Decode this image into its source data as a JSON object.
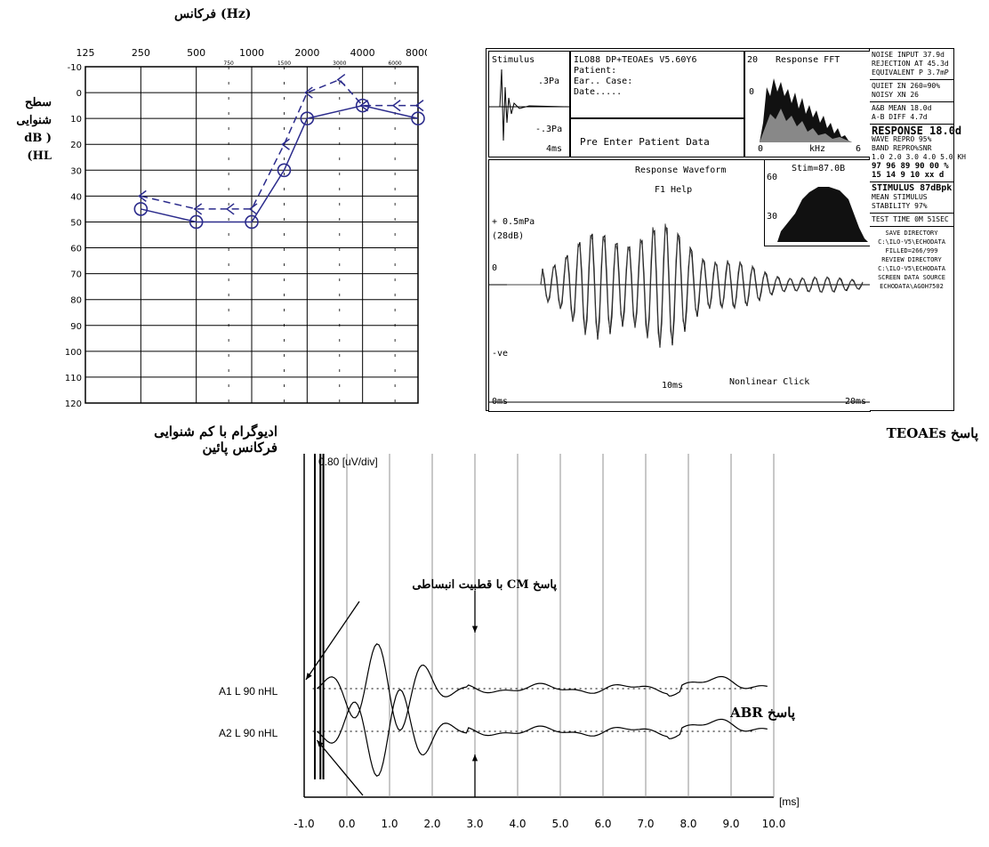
{
  "audiogram": {
    "title": "فرکانس (Hz)",
    "ylabel_lines": [
      "سطح",
      "شنوایی",
      "dB )",
      "(HL"
    ],
    "freq_labels": [
      "125",
      "250",
      "500",
      "1000",
      "2000",
      "4000",
      "8000"
    ],
    "half_freq_labels": [
      "750",
      "1500",
      "3000",
      "6000"
    ],
    "db_labels": [
      "-10",
      "0",
      "10",
      "20",
      "30",
      "40",
      "50",
      "60",
      "70",
      "80",
      "90",
      "100",
      "110",
      "120"
    ],
    "caption_lines": [
      "ادیوگرام با کم شنوایی",
      "فرکانس پائین"
    ]
  },
  "teoae": {
    "caption": "پاسخ TEOAEs",
    "stimulus": {
      "title": "Stimulus",
      "plus": ".3Pa",
      "minus": "-.3Pa",
      "time": "4ms"
    },
    "header": {
      "line1": "ILO88 DP+TEOAEs   V5.60Y6",
      "line2": "Patient:",
      "line3": "Ear..      Case:",
      "line4": "Date....."
    },
    "pre_enter": "Pre Enter Patient Data",
    "fft": {
      "title": "Response FFT",
      "scale_top": "20",
      "scale_bottom": "0",
      "xlabel": "kHz",
      "xend": "6",
      "xstart": "0"
    },
    "stim": {
      "label": "Stim=87.0B",
      "left_top": "60",
      "left_bottom": "30"
    },
    "wave": {
      "title": "Response Waveform",
      "help": "F1 Help",
      "amp": "+ 0.5mPa",
      "amp2": "(28dB)",
      "zero": "0",
      "neg": "-ve",
      "t0": "0ms",
      "tmid": "10ms",
      "tend": "20ms",
      "mode": "Nonlinear Click"
    },
    "side": {
      "noise": [
        "NOISE INPUT 37.9d",
        "REJECTION AT 45.3d",
        "EQUIVALENT P 3.7mP"
      ],
      "quiet": [
        "QUIET ΣN 260=90%",
        "NOISY XN   26"
      ],
      "ab": [
        "A&B MEAN  18.0d",
        "A-B DIFF   4.7d"
      ],
      "response": [
        "RESPONSE 18.0d",
        "WAVE REPRO 95%",
        "BAND REPRO%SNR",
        "1.0 2.0 3.0 4.0 5.0 KH",
        "97 96 89 90 00 %",
        "15 14  9 10 xx d"
      ],
      "stimulus": [
        "STIMULUS 87dBpk",
        "MEAN STIMULUS",
        "STABILITY 97%"
      ],
      "test_time": "TEST TIME  0M 51SEC",
      "dirs": [
        "SAVE DIRECTORY",
        "C:\\ILO-V5\\ECHODATA",
        "FILLED=266/999",
        "REVIEW DIRECTORY",
        "C:\\ILO-V5\\ECHODATA",
        "SCREEN DATA SOURCE",
        "ECHODATA\\AGOH7502"
      ]
    }
  },
  "abr": {
    "scale": "0.80 [uV/div]",
    "trace1": "A1 L 90 nHL",
    "trace2": "A2 L 90 nHL",
    "cm_label": "پاسخ CM با قطبیت انبساطی",
    "abr_label": "پاسخ ABR",
    "xunit": "[ms]",
    "xticks": [
      "-1.0",
      "0.0",
      "1.0",
      "2.0",
      "3.0",
      "4.0",
      "5.0",
      "6.0",
      "7.0",
      "8.0",
      "9.0",
      "10.0"
    ]
  },
  "colors": {
    "audiogram_marks": "#2b2b8c",
    "ink": "#000000",
    "oae_fill": "#111111"
  },
  "chart_data": [
    {
      "type": "line",
      "x_scale": "log",
      "x_unit": "Hz",
      "y_reversed": true,
      "ylim": [
        -10,
        120
      ],
      "series": [
        {
          "x": [
            250,
            500,
            1000,
            1500,
            2000,
            4000,
            8000
          ],
          "y": [
            45,
            50,
            50,
            30,
            10,
            5,
            10
          ]
        },
        {
          "x": [
            250,
            500,
            750,
            1000,
            1500,
            2000,
            3000,
            4000,
            6000,
            8000
          ],
          "y": [
            40,
            45,
            45,
            45,
            20,
            0,
            -5,
            5,
            5,
            5
          ]
        }
      ]
    },
    {
      "type": "line",
      "xlim": [
        0,
        20
      ],
      "x_unit": "ms"
    },
    {
      "type": "line",
      "x": [
        -1.0,
        0.0,
        1.0,
        2.0,
        3.0,
        4.0,
        5.0,
        6.0,
        7.0,
        8.0,
        9.0,
        10.0
      ],
      "xlim": [
        -1.0,
        10.0
      ],
      "x_unit": "ms"
    }
  ]
}
